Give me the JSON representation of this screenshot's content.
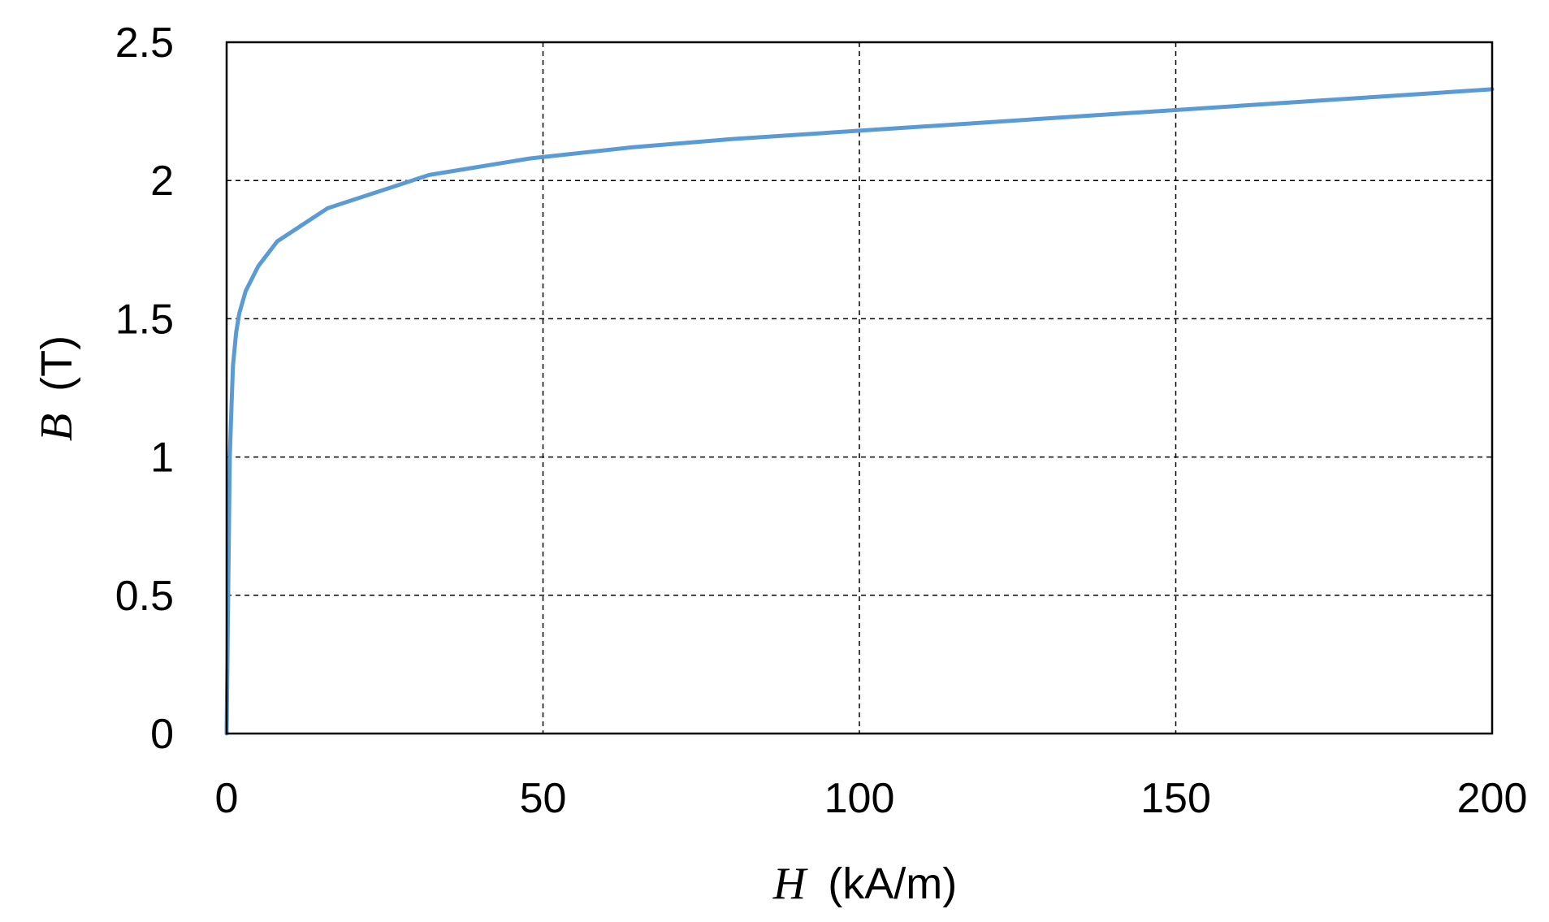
{
  "chart_data": {
    "type": "line",
    "xlabel": {
      "var": "H",
      "unit": "(kA/m)"
    },
    "ylabel": {
      "var": "B",
      "unit": "(T)"
    },
    "xlim": [
      0,
      200
    ],
    "ylim": [
      0,
      2.5
    ],
    "x_ticks": [
      0,
      50,
      100,
      150,
      200
    ],
    "y_ticks": [
      0,
      0.5,
      1,
      1.5,
      2,
      2.5
    ],
    "x_tick_labels": [
      "0",
      "50",
      "100",
      "150",
      "200"
    ],
    "y_tick_labels": [
      "0",
      "0.5",
      "1",
      "1.5",
      "2",
      "2.5"
    ],
    "grid": true,
    "legend": "none",
    "series": [
      {
        "color": "#5b9bd5",
        "x": [
          0,
          0.3,
          0.5,
          0.8,
          1.0,
          1.5,
          2.0,
          3.0,
          5.0,
          8.0,
          16,
          32,
          48,
          64,
          80,
          100,
          120,
          140,
          160,
          180,
          200
        ],
        "y": [
          0,
          0.6,
          1.0,
          1.2,
          1.33,
          1.45,
          1.52,
          1.6,
          1.69,
          1.78,
          1.9,
          2.02,
          2.08,
          2.12,
          2.15,
          2.18,
          2.21,
          2.24,
          2.27,
          2.3,
          2.33
        ]
      }
    ]
  }
}
